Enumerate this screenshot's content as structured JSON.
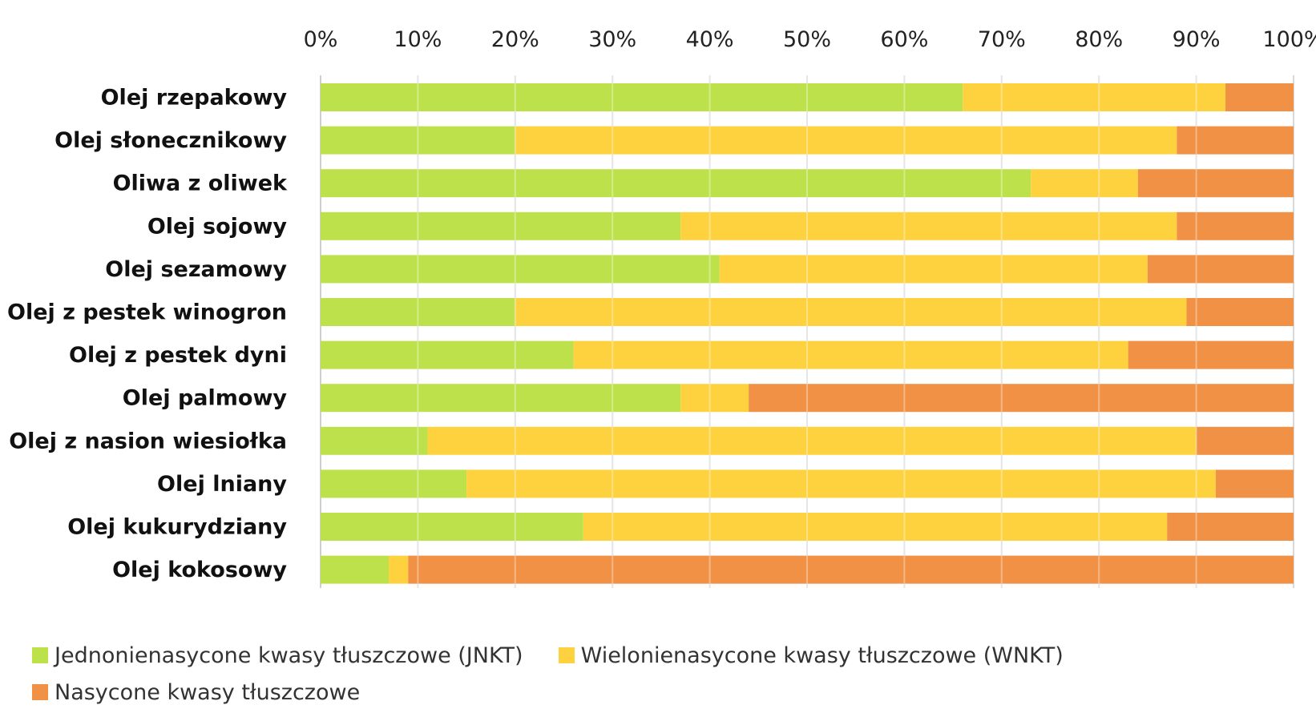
{
  "chart_data": {
    "type": "bar",
    "orientation": "horizontal",
    "stacked": true,
    "normalized_percent": true,
    "title": "",
    "xlabel": "",
    "ylabel": "",
    "xlim": [
      0,
      100
    ],
    "x_ticks": [
      "0%",
      "10%",
      "20%",
      "30%",
      "40%",
      "50%",
      "60%",
      "70%",
      "80%",
      "90%",
      "100%"
    ],
    "x_axis_position": "top",
    "grid": true,
    "legend_position": "bottom",
    "categories": [
      "Olej rzepakowy",
      "Olej słonecznikowy",
      "Oliwa z oliwek",
      "Olej sojowy",
      "Olej sezamowy",
      "Olej z pestek winogron",
      "Olej z pestek dyni",
      "Olej palmowy",
      "Olej z nasion wiesiołka",
      "Olej lniany",
      "Olej kukurydziany",
      "Olej kokosowy"
    ],
    "series": [
      {
        "name": "Jednonienasycone kwasy tłuszczowe (JNKT)",
        "color": "#bde14a",
        "values": [
          66,
          20,
          73,
          37,
          41,
          20,
          26,
          37,
          11,
          15,
          27,
          7
        ]
      },
      {
        "name": "Wielonienasycone kwasy tłuszczowe (WNKT)",
        "color": "#fed23e",
        "values": [
          27,
          68,
          11,
          51,
          44,
          69,
          57,
          7,
          79,
          77,
          60,
          2
        ]
      },
      {
        "name": "Nasycone kwasy tłuszczowe",
        "color": "#f09146",
        "values": [
          7,
          12,
          16,
          12,
          15,
          11,
          17,
          56,
          10,
          8,
          13,
          91
        ]
      }
    ]
  }
}
